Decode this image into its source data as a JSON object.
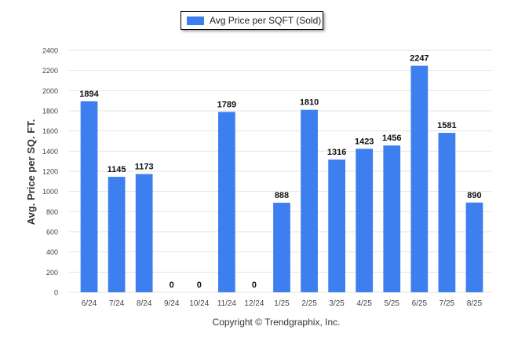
{
  "legend": {
    "label": "Avg Price per SQFT (Sold)"
  },
  "footer": {
    "copyright": "Copyright © Trendgraphix, Inc."
  },
  "colors": {
    "bar": "#3d7fef",
    "grid": "#e3e3e3",
    "axis_text": "#444444",
    "label_text": "#111111"
  },
  "chart_data": {
    "type": "bar",
    "categories": [
      "6/24",
      "7/24",
      "8/24",
      "9/24",
      "10/24",
      "11/24",
      "12/24",
      "1/25",
      "2/25",
      "3/25",
      "4/25",
      "5/25",
      "6/25",
      "7/25",
      "8/25"
    ],
    "series": [
      {
        "name": "Avg Price per SQFT (Sold)",
        "values": [
          1894,
          1145,
          1173,
          0,
          0,
          1789,
          0,
          888,
          1810,
          1316,
          1423,
          1456,
          2247,
          1581,
          890
        ]
      }
    ],
    "data_labels": [
      "1894",
      "1145",
      "1173",
      "0",
      "0",
      "1789",
      "0",
      "888",
      "1810",
      "1316",
      "1423",
      "1456",
      "2247",
      "1581",
      "890"
    ],
    "ylabel": "Avg. Price per SQ. FT.",
    "xlabel": "",
    "ylim": [
      0,
      2400
    ],
    "yticks": [
      "0",
      "200",
      "400",
      "600",
      "800",
      "1000",
      "1200",
      "1400",
      "1600",
      "1800",
      "2000",
      "2200",
      "2400"
    ],
    "grid": true,
    "legend_position": "top-center"
  }
}
